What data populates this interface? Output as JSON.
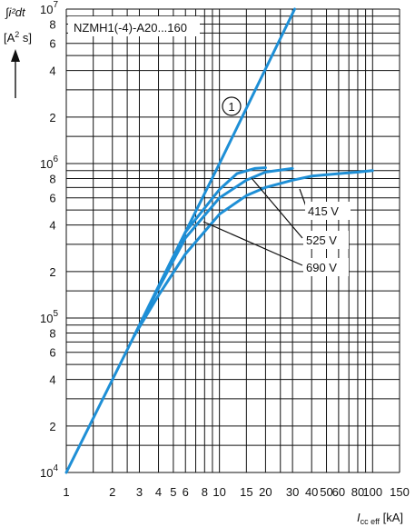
{
  "chart_data": {
    "type": "line",
    "title": "NZMH1(-4)-A20...160",
    "xscale": "log",
    "yscale": "log",
    "xlim": [
      1,
      150
    ],
    "ylim": [
      10000,
      10000000
    ],
    "grid": true,
    "y_axis_label": {
      "integral": "∫i²dt",
      "unit_open": "[A",
      "unit_exp": "2",
      "unit_close": " s]"
    },
    "x_axis_label": {
      "symbol": "I",
      "sub": "cc eff",
      "unit": " [kA]"
    },
    "x_ticks": [
      {
        "value": 1,
        "label": "1"
      },
      {
        "value": 2,
        "label": "2"
      },
      {
        "value": 3,
        "label": "3"
      },
      {
        "value": 4,
        "label": "4"
      },
      {
        "value": 5,
        "label": "5"
      },
      {
        "value": 6,
        "label": "6"
      },
      {
        "value": 8,
        "label": "8"
      },
      {
        "value": 10,
        "label": "10"
      },
      {
        "value": 15,
        "label": "15"
      },
      {
        "value": 20,
        "label": "20"
      },
      {
        "value": 30,
        "label": "30"
      },
      {
        "value": 40,
        "label": "40"
      },
      {
        "value": 50,
        "label": "50"
      },
      {
        "value": 60,
        "label": "60"
      },
      {
        "value": 80,
        "label": "80"
      },
      {
        "value": 100,
        "label": "100"
      },
      {
        "value": 150,
        "label": "150"
      }
    ],
    "x_grid": [
      1,
      1.5,
      2,
      2.5,
      3,
      4,
      5,
      6,
      7,
      8,
      9,
      10,
      15,
      20,
      25,
      30,
      40,
      50,
      60,
      70,
      80,
      90,
      100,
      150
    ],
    "y_ticks": [
      {
        "value": 10000,
        "base": "10",
        "exp": "4"
      },
      {
        "value": 20000,
        "label": "2"
      },
      {
        "value": 40000,
        "label": "4"
      },
      {
        "value": 60000,
        "label": "6"
      },
      {
        "value": 80000,
        "label": "8"
      },
      {
        "value": 100000,
        "base": "10",
        "exp": "5"
      },
      {
        "value": 200000,
        "label": "2"
      },
      {
        "value": 400000,
        "label": "4"
      },
      {
        "value": 600000,
        "label": "6"
      },
      {
        "value": 800000,
        "label": "8"
      },
      {
        "value": 1000000,
        "base": "10",
        "exp": "6"
      },
      {
        "value": 2000000,
        "label": "2"
      },
      {
        "value": 4000000,
        "label": "4"
      },
      {
        "value": 6000000,
        "label": "6"
      },
      {
        "value": 8000000,
        "label": "8"
      },
      {
        "value": 10000000,
        "base": "10",
        "exp": "7"
      }
    ],
    "y_grid": [
      10000,
      15000,
      20000,
      30000,
      40000,
      50000,
      60000,
      70000,
      80000,
      90000,
      100000,
      150000,
      200000,
      300000,
      400000,
      500000,
      600000,
      700000,
      800000,
      900000,
      1000000,
      1500000,
      2000000,
      3000000,
      4000000,
      5000000,
      6000000,
      7000000,
      8000000,
      9000000,
      10000000
    ],
    "series": [
      {
        "name": "1",
        "points": [
          [
            1,
            10000
          ],
          [
            2.78,
            77000
          ],
          [
            4,
            160000
          ],
          [
            10,
            1000000
          ],
          [
            31,
            10000000
          ]
        ]
      },
      {
        "name": "415 V",
        "points": [
          [
            2.78,
            77000
          ],
          [
            4,
            140000
          ],
          [
            6,
            260000
          ],
          [
            10,
            470000
          ],
          [
            15,
            620000
          ],
          [
            20,
            700000
          ],
          [
            30,
            780000
          ],
          [
            40,
            830000
          ],
          [
            60,
            860000
          ],
          [
            80,
            880000
          ],
          [
            100,
            900000
          ]
        ]
      },
      {
        "name": "525 V",
        "points": [
          [
            2.78,
            77000
          ],
          [
            4,
            155000
          ],
          [
            6,
            330000
          ],
          [
            10,
            600000
          ],
          [
            15,
            780000
          ],
          [
            20,
            880000
          ],
          [
            30,
            930000
          ]
        ]
      },
      {
        "name": "690 V",
        "points": [
          [
            2.78,
            77000
          ],
          [
            4,
            160000
          ],
          [
            6,
            360000
          ],
          [
            10,
            680000
          ],
          [
            13,
            860000
          ],
          [
            17,
            930000
          ],
          [
            20,
            940000
          ]
        ]
      }
    ],
    "annotations": [
      {
        "text": "1",
        "style": "circled"
      },
      {
        "text": "415 V"
      },
      {
        "text": "525 V"
      },
      {
        "text": "690 V"
      }
    ],
    "colors": {
      "curve": "#1e8fd6",
      "grid": "#111111"
    }
  }
}
